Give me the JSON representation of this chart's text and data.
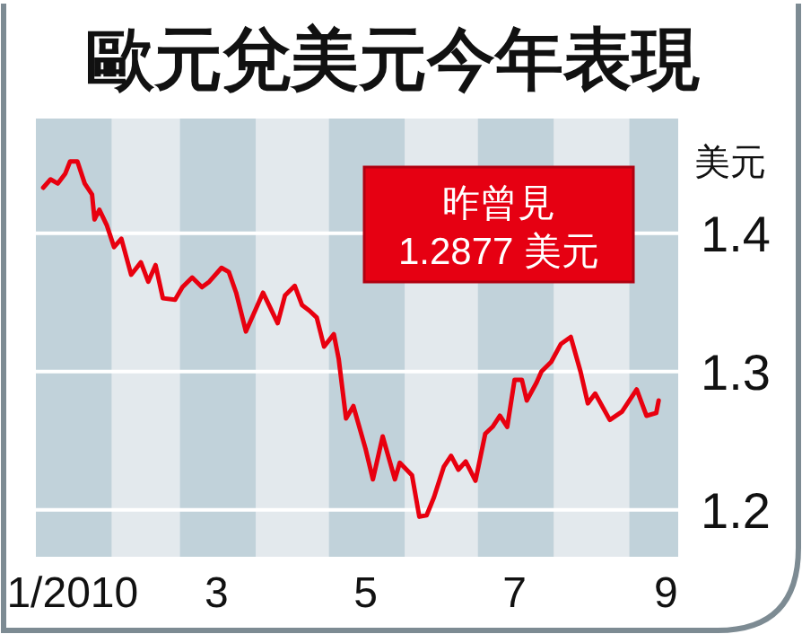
{
  "chart_data": {
    "type": "line",
    "title": "歐元兌美元今年表現",
    "ylabel": "美元",
    "annotations": [
      "昨曾見 1.2877 美元"
    ],
    "x": [
      "2010-01-04",
      "2010-01-07",
      "2010-01-10",
      "2010-01-13",
      "2010-01-15",
      "2010-01-18",
      "2010-01-21",
      "2010-01-24",
      "2010-01-25",
      "2010-01-27",
      "2010-01-30",
      "2010-02-02",
      "2010-02-05",
      "2010-02-09",
      "2010-02-13",
      "2010-02-16",
      "2010-02-19",
      "2010-02-22",
      "2010-02-27",
      "2010-03-02",
      "2010-03-06",
      "2010-03-10",
      "2010-03-13",
      "2010-03-18",
      "2010-03-21",
      "2010-03-24",
      "2010-03-28",
      "2010-04-01",
      "2010-04-04",
      "2010-04-10",
      "2010-04-13",
      "2010-04-17",
      "2010-04-20",
      "2010-04-23",
      "2010-04-26",
      "2010-04-29",
      "2010-05-03",
      "2010-05-05",
      "2010-05-08",
      "2010-05-11",
      "2010-05-16",
      "2010-05-19",
      "2010-05-23",
      "2010-05-28",
      "2010-05-30",
      "2010-06-04",
      "2010-06-07",
      "2010-06-10",
      "2010-06-13",
      "2010-06-17",
      "2010-06-20",
      "2010-06-23",
      "2010-06-26",
      "2010-06-30",
      "2010-07-04",
      "2010-07-07",
      "2010-07-10",
      "2010-07-13",
      "2010-07-16",
      "2010-07-19",
      "2010-07-21",
      "2010-07-25",
      "2010-07-27",
      "2010-07-31",
      "2010-08-04",
      "2010-08-08",
      "2010-08-12",
      "2010-08-15",
      "2010-08-18",
      "2010-08-24",
      "2010-08-29",
      "2010-09-04",
      "2010-09-08",
      "2010-09-12",
      "2010-09-13"
    ],
    "series": [
      {
        "color": "#e8000f",
        "values": [
          1.433,
          1.439,
          1.436,
          1.443,
          1.452,
          1.452,
          1.436,
          1.428,
          1.41,
          1.417,
          1.406,
          1.39,
          1.396,
          1.37,
          1.379,
          1.365,
          1.377,
          1.353,
          1.352,
          1.361,
          1.368,
          1.361,
          1.365,
          1.375,
          1.372,
          1.357,
          1.329,
          1.345,
          1.357,
          1.335,
          1.355,
          1.362,
          1.348,
          1.344,
          1.339,
          1.318,
          1.327,
          1.309,
          1.266,
          1.275,
          1.244,
          1.222,
          1.253,
          1.222,
          1.234,
          1.225,
          1.195,
          1.196,
          1.209,
          1.231,
          1.239,
          1.229,
          1.235,
          1.221,
          1.255,
          1.26,
          1.268,
          1.26,
          1.294,
          1.294,
          1.279,
          1.292,
          1.3,
          1.307,
          1.32,
          1.325,
          1.3,
          1.277,
          1.284,
          1.265,
          1.271,
          1.287,
          1.268,
          1.27,
          1.279
        ]
      }
    ],
    "xlim": [
      "2010-01-01",
      "2010-09-21"
    ],
    "ylim": [
      1.166,
      1.483
    ],
    "xticks": [
      {
        "value": "2010-01-16",
        "label": "1/2010"
      },
      {
        "value": "2010-03-16",
        "label": "3"
      },
      {
        "value": "2010-05-16",
        "label": "5"
      },
      {
        "value": "2010-07-16",
        "label": "7"
      },
      {
        "value": "2010-09-16",
        "label": "9"
      }
    ],
    "yticks": [
      1.2,
      1.3,
      1.4
    ],
    "grid": "y",
    "bands": [
      {
        "axis": "x",
        "from": "2010-01-01",
        "to": "2010-02-01",
        "label": null,
        "color": "#c1d2da"
      },
      {
        "axis": "x",
        "from": "2010-03-01",
        "to": "2010-04-01",
        "label": null,
        "color": "#c1d2da"
      },
      {
        "axis": "x",
        "from": "2010-05-01",
        "to": "2010-06-01",
        "label": null,
        "color": "#c1d2da"
      },
      {
        "axis": "x",
        "from": "2010-07-01",
        "to": "2010-08-01",
        "label": null,
        "color": "#c1d2da"
      },
      {
        "axis": "x",
        "from": "2010-09-01",
        "to": "2010-09-21",
        "label": null,
        "color": "#c1d2da"
      }
    ]
  }
}
